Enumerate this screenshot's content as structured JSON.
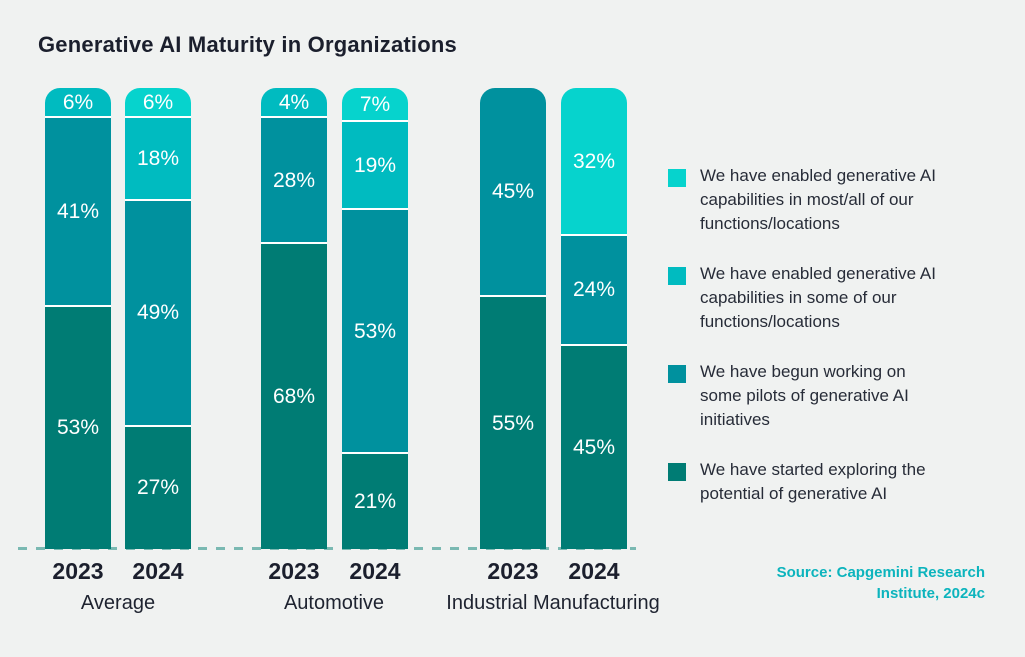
{
  "title": "Generative AI Maturity in Organizations",
  "source": "Source: Capgemini Research\nInstitute, 2024c",
  "colors": {
    "background": "#f0f2f1",
    "text_dark": "#1b1f2d",
    "legend_text": "#272c38",
    "baseline_dash": "#7ab9b2",
    "source_text": "#0cb4bd",
    "segment_gap": "#ffffff"
  },
  "chart_data": {
    "type": "bar",
    "stacked": true,
    "value_unit": "%",
    "grid": false,
    "legend_position": "right",
    "categories": [
      "Average",
      "Automotive",
      "Industrial Manufacturing"
    ],
    "years": [
      "2023",
      "2024"
    ],
    "legend": [
      {
        "label": "We have enabled generative AI\ncapabilities in most/all of our\nfunctions/locations",
        "color": "#06d3cd"
      },
      {
        "label": "We have enabled generative AI\ncapabilities in some of our\nfunctions/locations",
        "color": "#00bbc0"
      },
      {
        "label": "We have begun working on\nsome pilots of generative AI\ninitiatives",
        "color": "#00919e"
      },
      {
        "label": "We have started exploring the\npotential of generative AI",
        "color": "#007c74"
      }
    ],
    "bars": [
      {
        "category": "Average",
        "year": "2023",
        "segments": [
          {
            "legend_index": 1,
            "value": 6
          },
          {
            "legend_index": 2,
            "value": 41
          },
          {
            "legend_index": 3,
            "value": 53
          }
        ]
      },
      {
        "category": "Average",
        "year": "2024",
        "segments": [
          {
            "legend_index": 0,
            "value": 6
          },
          {
            "legend_index": 1,
            "value": 18
          },
          {
            "legend_index": 2,
            "value": 49
          },
          {
            "legend_index": 3,
            "value": 27
          }
        ]
      },
      {
        "category": "Automotive",
        "year": "2023",
        "segments": [
          {
            "legend_index": 1,
            "value": 4
          },
          {
            "legend_index": 2,
            "value": 28
          },
          {
            "legend_index": 3,
            "value": 68
          }
        ]
      },
      {
        "category": "Automotive",
        "year": "2024",
        "segments": [
          {
            "legend_index": 0,
            "value": 7
          },
          {
            "legend_index": 1,
            "value": 19
          },
          {
            "legend_index": 2,
            "value": 53
          },
          {
            "legend_index": 3,
            "value": 21
          }
        ]
      },
      {
        "category": "Industrial Manufacturing",
        "year": "2023",
        "segments": [
          {
            "legend_index": 2,
            "value": 45
          },
          {
            "legend_index": 3,
            "value": 55
          }
        ]
      },
      {
        "category": "Industrial Manufacturing",
        "year": "2024",
        "segments": [
          {
            "legend_index": 0,
            "value": 32
          },
          {
            "legend_index": 2,
            "value": 24
          },
          {
            "legend_index": 3,
            "value": 45
          }
        ]
      }
    ]
  }
}
